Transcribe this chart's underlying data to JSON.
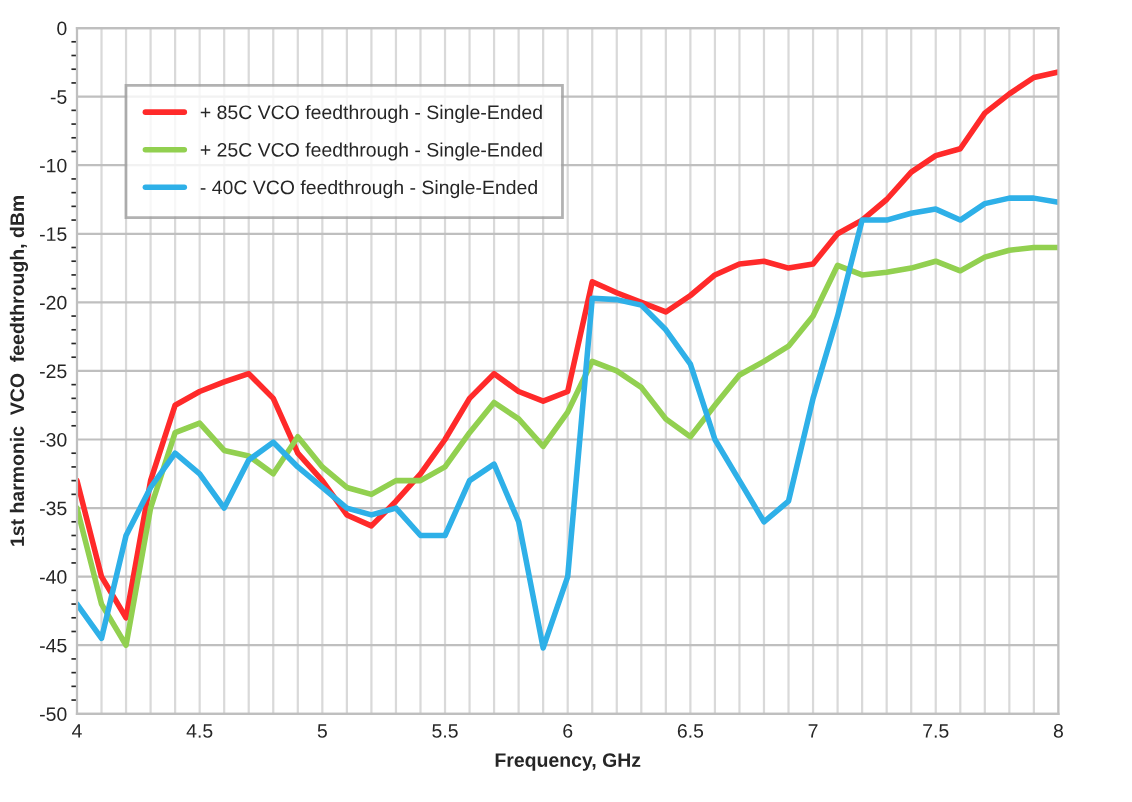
{
  "chart_data": {
    "type": "line",
    "xlabel": "Frequency, GHz",
    "ylabel": "1st harmonic  VCO  feedthrough, dBm",
    "x": [
      4.0,
      4.1,
      4.2,
      4.3,
      4.4,
      4.5,
      4.6,
      4.7,
      4.8,
      4.9,
      5.0,
      5.1,
      5.2,
      5.3,
      5.4,
      5.5,
      5.6,
      5.7,
      5.8,
      5.9,
      6.0,
      6.1,
      6.2,
      6.3,
      6.4,
      6.5,
      6.6,
      6.7,
      6.8,
      6.9,
      7.0,
      7.1,
      7.2,
      7.3,
      7.4,
      7.5,
      7.6,
      7.7,
      7.8,
      7.9,
      8.0
    ],
    "series": [
      {
        "name": "+ 85C VCO feedthrough - Single-Ended",
        "color": "#ff2a2a",
        "values": [
          -33,
          -40,
          -43,
          -33,
          -27.5,
          -26.5,
          -25.8,
          -25.2,
          -27,
          -31,
          -33,
          -35.5,
          -36.3,
          -34.5,
          -32.5,
          -30,
          -27,
          -25.2,
          -26.5,
          -27.2,
          -26.5,
          -18.5,
          -19.3,
          -20,
          -20.7,
          -19.5,
          -18,
          -17.2,
          -17,
          -17.5,
          -17.2,
          -15,
          -14,
          -12.5,
          -10.5,
          -9.3,
          -8.8,
          -6.2,
          -4.8,
          -3.6,
          -3.2
        ]
      },
      {
        "name": "+ 25C VCO feedthrough - Single-Ended",
        "color": "#92d050",
        "values": [
          -35,
          -42,
          -45,
          -35,
          -29.5,
          -28.8,
          -30.8,
          -31.2,
          -32.5,
          -29.8,
          -32,
          -33.5,
          -34,
          -33,
          -33,
          -32,
          -29.5,
          -27.3,
          -28.5,
          -30.5,
          -28,
          -24.3,
          -25,
          -26.2,
          -28.5,
          -29.8,
          -27.5,
          -25.3,
          -24.3,
          -23.2,
          -21,
          -17.3,
          -18,
          -17.8,
          -17.5,
          -17,
          -17.7,
          -16.7,
          -16.2,
          -16,
          -16
        ]
      },
      {
        "name": "- 40C VCO feedthrough - Single-Ended",
        "color": "#2eb0e8",
        "values": [
          -42,
          -44.5,
          -37,
          -33.5,
          -31,
          -32.5,
          -35,
          -31.5,
          -30.2,
          -32,
          -33.5,
          -35,
          -35.5,
          -35,
          -37,
          -37,
          -33,
          -31.8,
          -36,
          -45.2,
          -40,
          -19.7,
          -19.8,
          -20.2,
          -22,
          -24.5,
          -30,
          -33,
          -36,
          -34.5,
          -27,
          -21,
          -14,
          -14,
          -13.5,
          -13.2,
          -14,
          -12.8,
          -12.4,
          -12.4,
          -12.7
        ]
      }
    ],
    "xlim": [
      4,
      8
    ],
    "ylim": [
      -50,
      0
    ],
    "xticks": [
      4,
      4.5,
      5,
      5.5,
      6,
      6.5,
      7,
      7.5,
      8
    ],
    "yticks": [
      0,
      -5,
      -10,
      -15,
      -20,
      -25,
      -30,
      -35,
      -40,
      -45,
      -50
    ],
    "grid": true,
    "legend": "top left",
    "marker": "none",
    "line_style": "solid"
  }
}
